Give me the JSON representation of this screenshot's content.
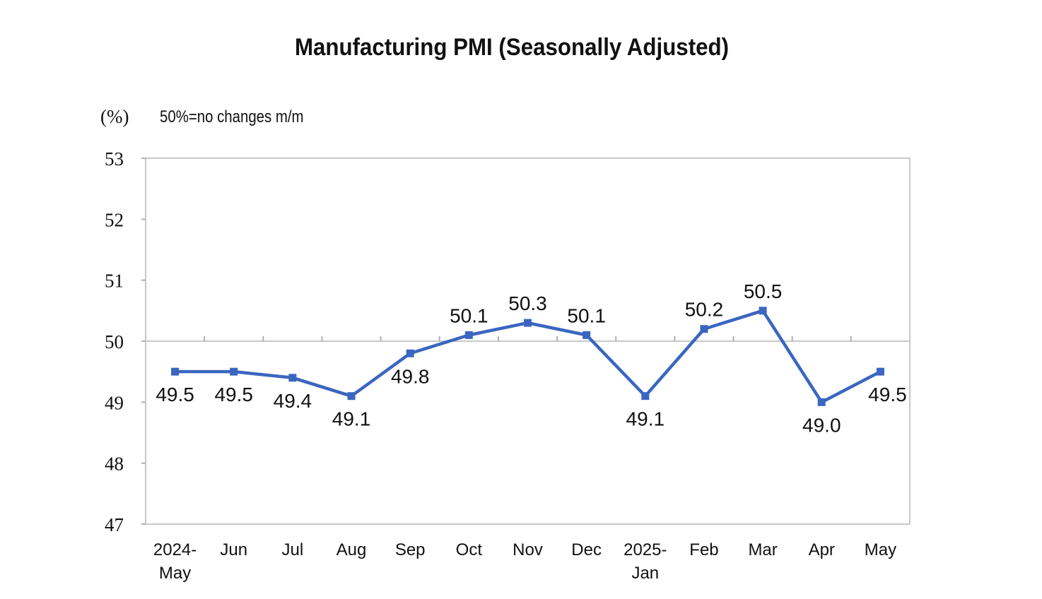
{
  "chart_data": {
    "type": "line",
    "title": "Manufacturing PMI (Seasonally Adjusted)",
    "ylabel": "(%)",
    "annotation": "50%=no changes m/m",
    "categories": [
      [
        "2024-",
        "May"
      ],
      [
        "Jun"
      ],
      [
        "Jul"
      ],
      [
        "Aug"
      ],
      [
        "Sep"
      ],
      [
        "Oct"
      ],
      [
        "Nov"
      ],
      [
        "Dec"
      ],
      [
        "2025-",
        "Jan"
      ],
      [
        "Feb"
      ],
      [
        "Mar"
      ],
      [
        "Apr"
      ],
      [
        "May"
      ]
    ],
    "values": [
      49.5,
      49.5,
      49.4,
      49.1,
      49.8,
      50.1,
      50.3,
      50.1,
      49.1,
      50.2,
      50.5,
      49.0,
      49.5
    ],
    "data_labels": [
      "49.5",
      "49.5",
      "49.4",
      "49.1",
      "49.8",
      "50.1",
      "50.3",
      "50.1",
      "49.1",
      "50.2",
      "50.5",
      "49.0",
      "49.5"
    ],
    "ylim": [
      47,
      53
    ],
    "yticks": [
      47,
      48,
      49,
      50,
      51,
      52,
      53
    ],
    "x_axis_crosses_at": 50,
    "grid": false,
    "legend": "none",
    "line_color": "#3a66c0"
  }
}
